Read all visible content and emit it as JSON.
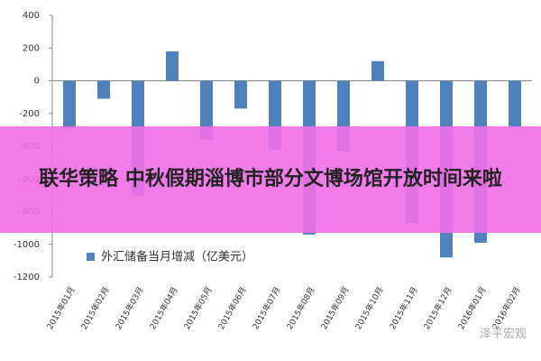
{
  "chart_data": {
    "type": "bar",
    "categories": [
      "2015年01月",
      "2015年02月",
      "2015年03月",
      "2015年04月",
      "2015年05月",
      "2015年06月",
      "2015年07月",
      "2015年08月",
      "2015年09月",
      "2015年10月",
      "2015年11月",
      "2015年12月",
      "2016年01月",
      "2016年02月"
    ],
    "series": [
      {
        "name": "外汇储备当月增减（亿美元）",
        "color": "#4f81bd",
        "values": [
          -290,
          -110,
          -700,
          180,
          -360,
          -170,
          -420,
          -940,
          -430,
          120,
          -870,
          -1080,
          -990,
          -280
        ]
      }
    ],
    "ylim": [
      -1200,
      400
    ],
    "yticks": [
      400,
      200,
      0,
      -200,
      -400,
      -600,
      -800,
      -1000,
      -1200
    ],
    "grid": false,
    "legend": "lower left"
  },
  "overlay": {
    "text": "联华策略 中秋假期淄博市部分文博场馆开放时间来啦"
  },
  "watermark": "泽平宏观"
}
